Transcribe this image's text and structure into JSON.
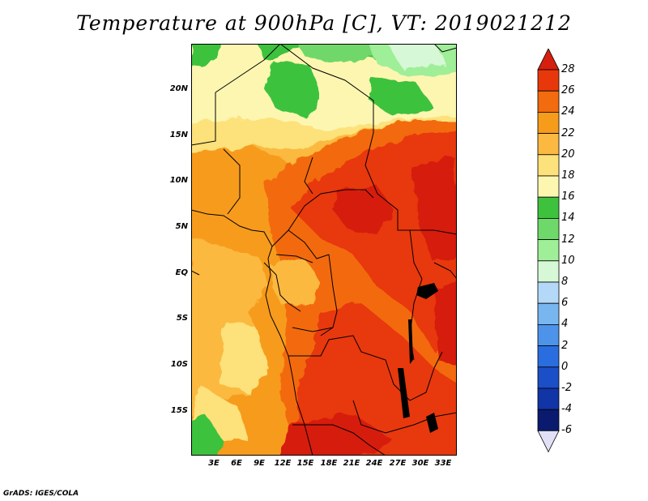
{
  "title": "Temperature at 900hPa [C], VT: 2019021212",
  "credit": "GrADS: IGES/COLA",
  "lat_labels": [
    "20N",
    "15N",
    "10N",
    "5N",
    "EQ",
    "5S",
    "10S",
    "15S"
  ],
  "lon_labels": [
    "3E",
    "6E",
    "9E",
    "12E",
    "15E",
    "18E",
    "21E",
    "24E",
    "27E",
    "30E",
    "33E"
  ],
  "colorbar": {
    "labels": [
      "28",
      "26",
      "24",
      "22",
      "20",
      "18",
      "16",
      "14",
      "12",
      "10",
      "8",
      "6",
      "4",
      "2",
      "0",
      "-2",
      "-4",
      "-6"
    ],
    "colors": [
      "#d61f0e",
      "#e8380b",
      "#f26b0e",
      "#f79b1a",
      "#fbb941",
      "#fde17a",
      "#fdf6b0",
      "#3ec23d",
      "#6fd86a",
      "#9fee98",
      "#d6f8d6",
      "#b4d8f7",
      "#78b6f0",
      "#4d93ea",
      "#2a6ddf",
      "#1a4fc7",
      "#1134a6",
      "#0a1a6e",
      "#e2e0f6"
    ]
  }
}
